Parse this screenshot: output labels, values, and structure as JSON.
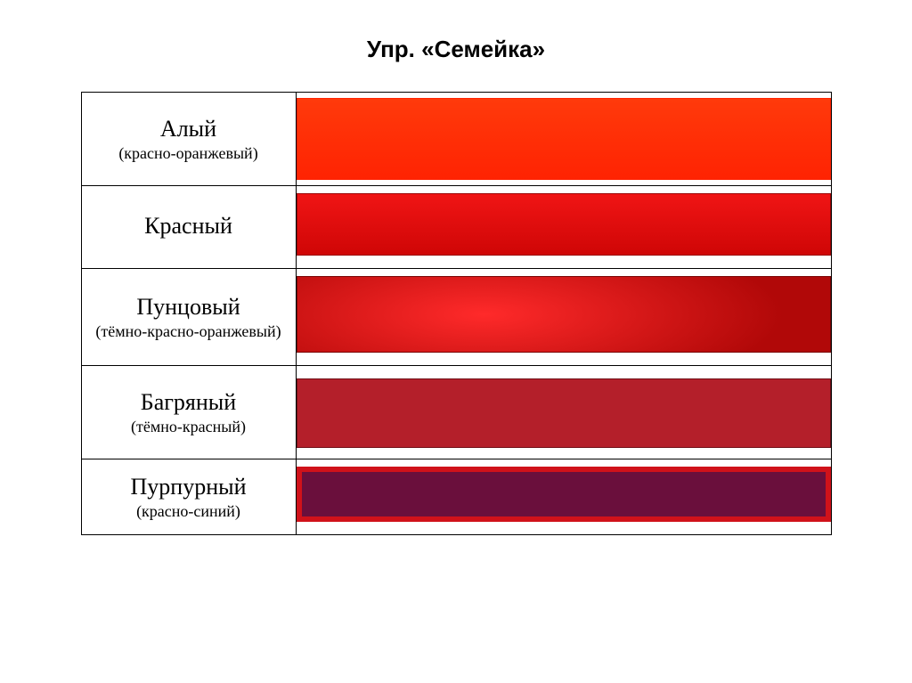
{
  "title": "Упр. «Семейка»",
  "title_fontsize": 26,
  "title_font": "Arial",
  "label_name_fontsize": 26,
  "label_desc_fontsize": 18,
  "table_border_color": "#000000",
  "background_color": "#ffffff",
  "rows": [
    {
      "name": "Алый",
      "desc": "(красно-оранжевый)",
      "swatch": {
        "type": "gradient-vertical",
        "top": "#ff3a0b",
        "bottom": "#ff2302",
        "outline": "#ff2302"
      }
    },
    {
      "name": "Красный",
      "desc": "",
      "swatch": {
        "type": "gradient-vertical",
        "top": "#f01515",
        "bottom": "#cf0606",
        "outline": "#9c0404"
      }
    },
    {
      "name": "Пунцовый",
      "desc": "(тёмно-красно-оранжевый)",
      "swatch": {
        "type": "gradient-radial",
        "center": "#ff2a2a",
        "edge": "#b10808",
        "outline": "#7a0404"
      }
    },
    {
      "name": "Багряный",
      "desc": "(тёмно-красный)",
      "swatch": {
        "type": "solid",
        "color": "#b41f2a",
        "outline": "#6f0f17"
      }
    },
    {
      "name": "Пурпурный",
      "desc": "(красно-синий)",
      "swatch": {
        "type": "two-tone",
        "inner": "#6a0f3c",
        "outer": "#d0121a",
        "outline": "#4f0a2d"
      }
    }
  ]
}
